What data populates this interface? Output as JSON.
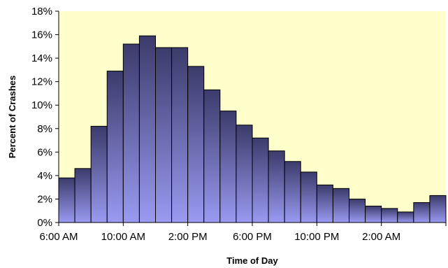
{
  "chart_data": {
    "type": "bar",
    "title": "",
    "xlabel": "Time of Day",
    "ylabel": "Percent of Crashes",
    "ylim": [
      0,
      18
    ],
    "y_ticks": [
      "0%",
      "2%",
      "4%",
      "6%",
      "8%",
      "10%",
      "12%",
      "14%",
      "16%",
      "18%"
    ],
    "x_tick_labels": [
      "6:00 AM",
      "10:00 AM",
      "2:00 PM",
      "6:00 PM",
      "10:00 PM",
      "2:00 AM"
    ],
    "categories": [
      "6 AM",
      "7 AM",
      "8 AM",
      "9 AM",
      "10 AM",
      "11 AM",
      "12 PM",
      "1 PM",
      "2 PM",
      "3 PM",
      "4 PM",
      "5 PM",
      "6 PM",
      "7 PM",
      "8 PM",
      "9 PM",
      "10 PM",
      "11 PM",
      "12 AM",
      "1 AM",
      "2 AM",
      "3 AM",
      "4 AM",
      "5 AM"
    ],
    "values": [
      3.8,
      4.6,
      8.2,
      12.9,
      15.2,
      15.9,
      14.9,
      14.9,
      13.3,
      11.3,
      9.5,
      8.3,
      7.2,
      6.1,
      5.2,
      4.3,
      3.2,
      2.9,
      2.0,
      1.4,
      1.2,
      0.9,
      1.7,
      2.3
    ],
    "grid": false,
    "legend": "none",
    "colors": {
      "plot_background": "#FFFFCC",
      "bar_top": "#3B3B6B",
      "bar_bottom": "#9A9AF2",
      "bar_outline": "#000000"
    }
  }
}
